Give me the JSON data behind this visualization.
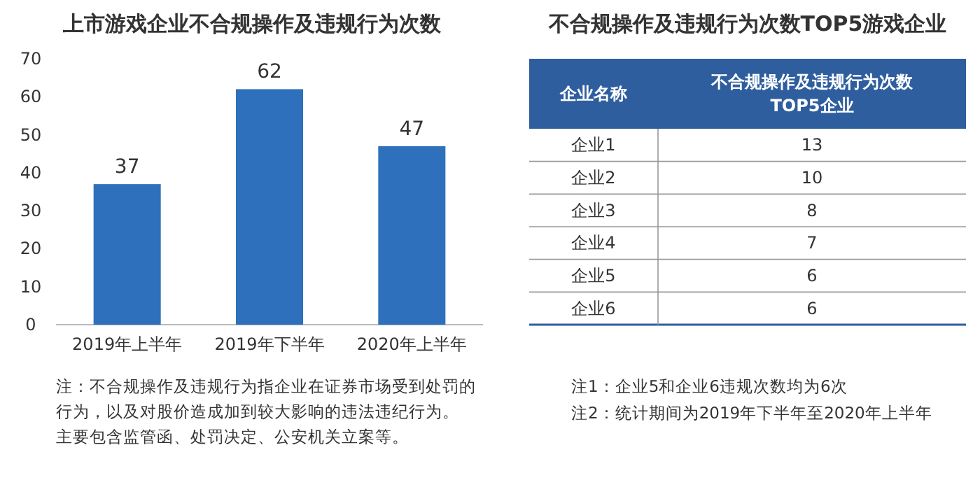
{
  "chart_data": [
    {
      "type": "bar",
      "title": "上市游戏企业不合规操作及违规行为次数",
      "categories": [
        "2019年上半年",
        "2019年下半年",
        "2020年上半年"
      ],
      "values": [
        37,
        62,
        47
      ],
      "color": "#2e70bb",
      "ylim": [
        0,
        70
      ],
      "yticks": [
        0,
        10,
        20,
        30,
        40,
        50,
        60,
        70
      ],
      "data_labels": true,
      "grid": false,
      "annotations": [
        "注：不合规操作及违规行为指企业在证券市场受到处罚的行为，以及对股价造成加到较大影响的违法违纪行为。",
        "主要包含监管函、处罚决定、公安机关立案等。"
      ]
    },
    {
      "type": "other",
      "title": "不合规操作及违规行为次数TOP5游戏企业",
      "xlabel": "企业名称",
      "ylabel": "不合规操作及违规行为次数TOP5企业",
      "categories": [
        "企业1",
        "企业2",
        "企业3",
        "企业4",
        "企业5",
        "企业6"
      ],
      "values": [
        13,
        10,
        8,
        7,
        6,
        6
      ],
      "data_labels": true,
      "color": "#2e5e9e",
      "annotations": [
        "注1：企业5和企业6违规次数均为6次",
        "注2：统计期间为2019年下半年至2020年上半年"
      ]
    }
  ]
}
